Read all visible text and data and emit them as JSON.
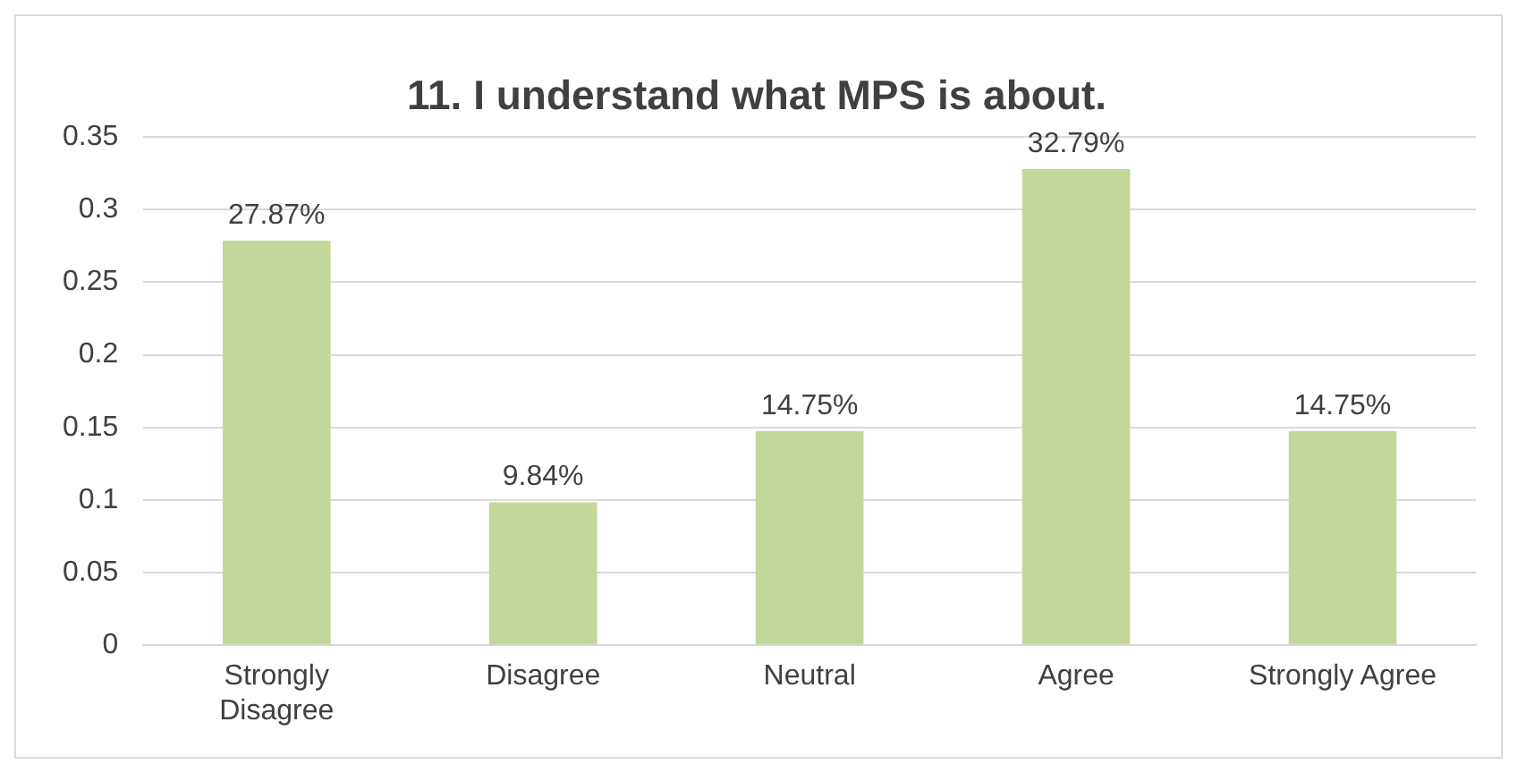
{
  "chart_data": {
    "type": "bar",
    "title": "11. I understand what MPS is about.",
    "categories": [
      "Strongly Disagree",
      "Disagree",
      "Neutral",
      "Agree",
      "Strongly Agree"
    ],
    "values": [
      0.2787,
      0.0984,
      0.1475,
      0.3279,
      0.1475
    ],
    "value_labels": [
      "27.87%",
      "9.84%",
      "14.75%",
      "32.79%",
      "14.75%"
    ],
    "color": "#c4d79b",
    "ylim": [
      0,
      0.35
    ],
    "yticks": [
      0,
      0.05,
      0.1,
      0.15,
      0.2,
      0.25,
      0.3,
      0.35
    ],
    "grid": "y",
    "legend": false
  }
}
